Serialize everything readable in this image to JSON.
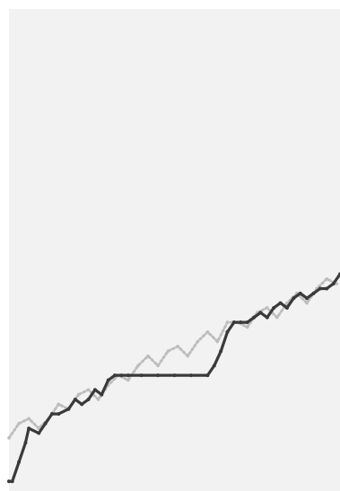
{
  "chart_data": {
    "type": "line",
    "title": "",
    "xlabel": "",
    "ylabel": "",
    "xlim": [
      0,
      100
    ],
    "ylim": [
      0,
      100
    ],
    "grid": false,
    "legend": "none",
    "series": [
      {
        "color": "#bdbdbd",
        "style": "dotted",
        "x": [
          0,
          3,
          6,
          9,
          12,
          15,
          18,
          21,
          24,
          27,
          30,
          33,
          36,
          39,
          42,
          45,
          48,
          51,
          54,
          57,
          60,
          63,
          66,
          69,
          72,
          75,
          78,
          81,
          84,
          87,
          90,
          93,
          96,
          99
        ],
        "y": [
          11,
          14,
          15,
          13,
          15,
          18,
          17,
          20,
          21,
          19,
          22,
          24,
          23,
          26,
          28,
          26,
          29,
          30,
          28,
          31,
          33,
          31,
          35,
          35,
          34,
          37,
          38,
          36,
          39,
          41,
          39,
          42,
          44,
          43
        ]
      },
      {
        "color": "#3a3a3a",
        "style": "dotted-with-flats",
        "x": [
          0,
          1,
          3,
          5,
          6,
          9,
          11,
          13,
          15,
          18,
          20,
          22,
          24,
          26,
          28,
          30,
          32,
          34,
          36,
          40,
          45,
          50,
          55,
          60,
          62,
          64,
          66,
          68,
          70,
          72,
          74,
          76,
          78,
          80,
          82,
          84,
          86,
          88,
          90,
          92,
          94,
          96,
          98,
          100
        ],
        "y": [
          2,
          2,
          6,
          10,
          13,
          12,
          14,
          16,
          16,
          17,
          19,
          18,
          19,
          21,
          20,
          23,
          24,
          24,
          24,
          24,
          24,
          24,
          24,
          24,
          26,
          29,
          33,
          35,
          35,
          35,
          36,
          37,
          36,
          38,
          39,
          38,
          40,
          41,
          40,
          41,
          42,
          42,
          43,
          45
        ]
      }
    ]
  }
}
